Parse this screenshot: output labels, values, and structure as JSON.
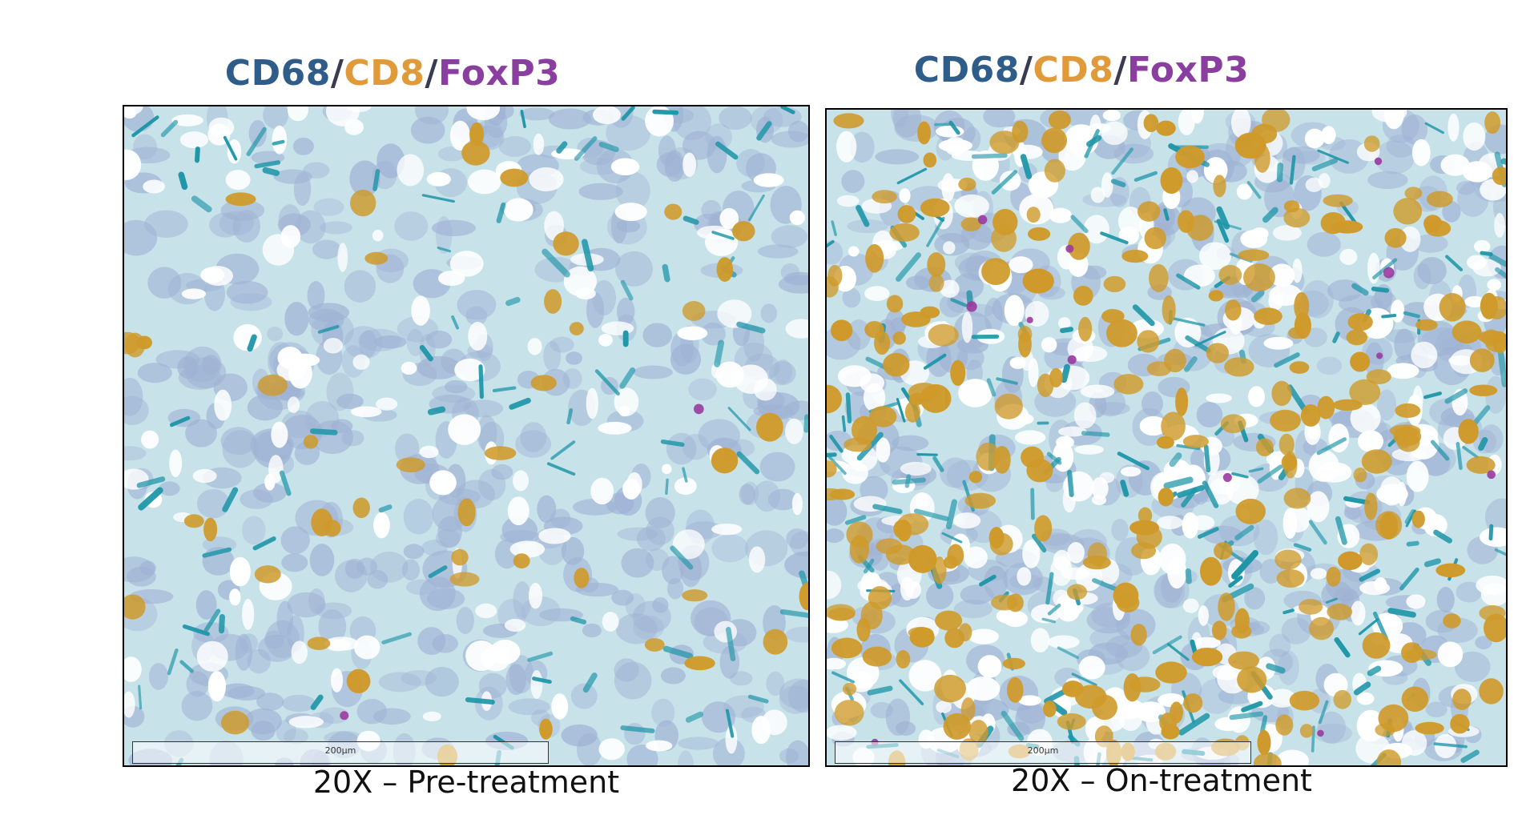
{
  "panels": [
    {
      "title_parts": [
        {
          "text": "CD68",
          "color": "#2f5d8a"
        },
        {
          "text": "/",
          "color": "#3a3a52"
        },
        {
          "text": "CD8",
          "color": "#e09a3a"
        },
        {
          "text": "/",
          "color": "#3a3a52"
        },
        {
          "text": "FoxP3",
          "color": "#8a3fa0"
        }
      ],
      "caption": "20X – Pre-treatment",
      "scale_label": "200µm",
      "image": "ihc-stain-pre-treatment"
    },
    {
      "title_parts": [
        {
          "text": "CD68",
          "color": "#2f5d8a"
        },
        {
          "text": "/",
          "color": "#3a3a52"
        },
        {
          "text": "CD8",
          "color": "#e09a3a"
        },
        {
          "text": "/",
          "color": "#3a3a52"
        },
        {
          "text": "FoxP3",
          "color": "#8a3fa0"
        }
      ],
      "caption": "20X – On-treatment",
      "scale_label": "200µm",
      "image": "ihc-stain-on-treatment"
    }
  ],
  "stain_colors": {
    "background": "#c8e2ea",
    "nuclei": "#9fb2d4",
    "cd68_teal": "#1e96a8",
    "cd8_orange": "#cf9a2a",
    "foxp3_purple": "#9a3a9e"
  }
}
